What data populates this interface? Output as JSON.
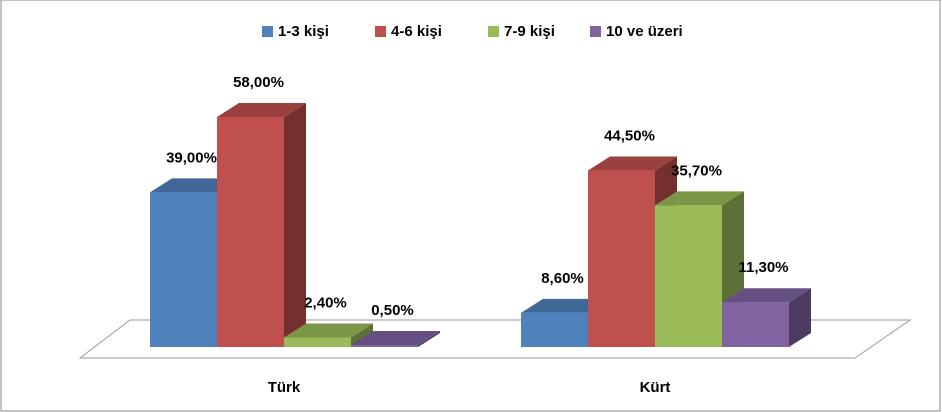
{
  "chart_data": {
    "type": "bar3d",
    "categories": [
      "Türk",
      "Kürt"
    ],
    "series": [
      {
        "name": "1-3 kişi",
        "color": "#4f81bd",
        "values": [
          39,
          8.6
        ],
        "value_labels": [
          "39,00%",
          "8,60%"
        ]
      },
      {
        "name": "4-6 kişi",
        "color": "#c0504d",
        "values": [
          58,
          44.5
        ],
        "value_labels": [
          "58,00%",
          "44,50%"
        ]
      },
      {
        "name": "7-9 kişi",
        "color": "#9bbb59",
        "values": [
          2.4,
          35.7
        ],
        "value_labels": [
          "2,40%",
          "35,70%"
        ]
      },
      {
        "name": "10 ve üzeri",
        "color": "#8064a2",
        "values": [
          0.5,
          11.3
        ],
        "value_labels": [
          "0,50%",
          "11,30%"
        ]
      }
    ],
    "legend": "top"
  }
}
